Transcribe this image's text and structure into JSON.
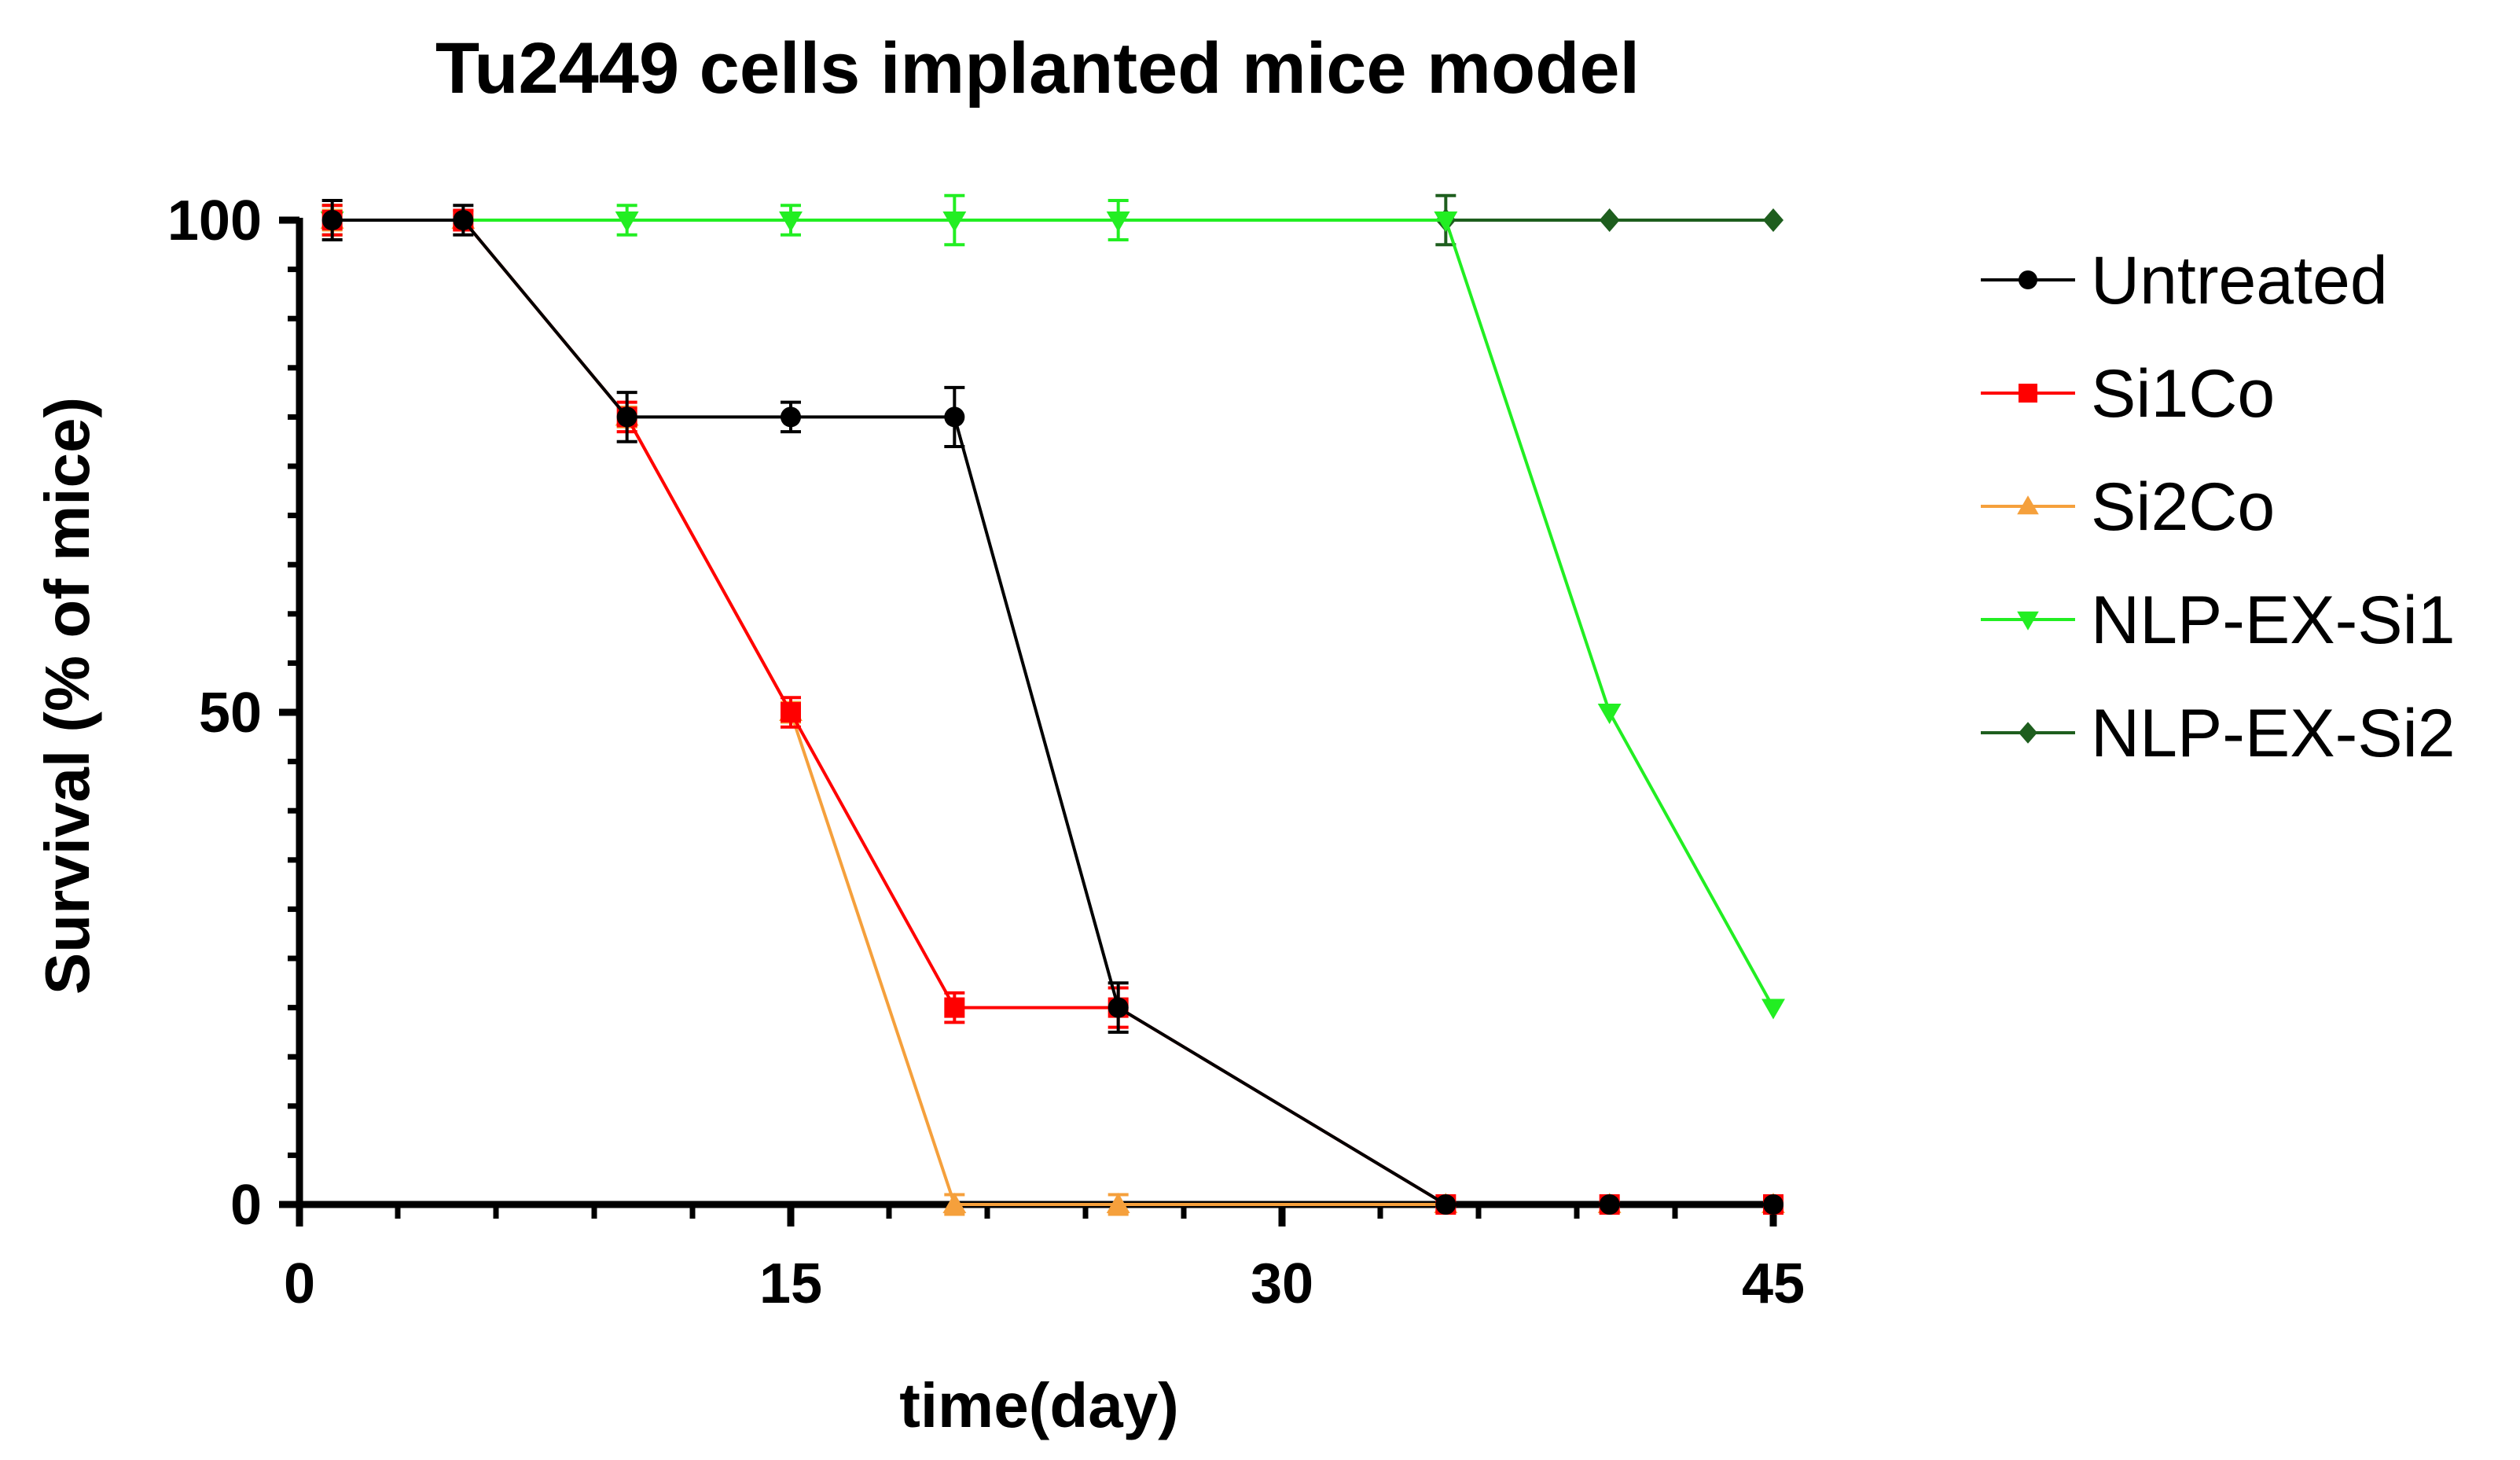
{
  "chart_data": {
    "type": "line",
    "title": "Tu2449 cells implanted mice model",
    "xlabel": "time(day)",
    "ylabel": "Survival (% of mice)",
    "xlim": [
      0,
      45
    ],
    "ylim": [
      0,
      100
    ],
    "x_ticks": [
      "0",
      "15",
      "30",
      "45"
    ],
    "y_ticks": [
      "0",
      "50",
      "100"
    ],
    "grid": false,
    "legend_position": "right",
    "series": [
      {
        "name": "Untreated",
        "color": "#000000",
        "marker": "circle",
        "points": [
          {
            "x": 1,
            "y": 100,
            "err": 2
          },
          {
            "x": 5,
            "y": 100,
            "err": 1.5
          },
          {
            "x": 10,
            "y": 80,
            "err": 2.5
          },
          {
            "x": 15,
            "y": 80,
            "err": 1.5
          },
          {
            "x": 20,
            "y": 80,
            "err": 3
          },
          {
            "x": 25,
            "y": 20,
            "err": 2.5
          },
          {
            "x": 35,
            "y": 0,
            "err": 0
          },
          {
            "x": 40,
            "y": 0,
            "err": 0
          },
          {
            "x": 45,
            "y": 0,
            "err": 0
          }
        ]
      },
      {
        "name": "Si1Co",
        "color": "#ff0000",
        "marker": "square",
        "points": [
          {
            "x": 1,
            "y": 100,
            "err": 1.5
          },
          {
            "x": 5,
            "y": 100,
            "err": 1
          },
          {
            "x": 10,
            "y": 80,
            "err": 1.5
          },
          {
            "x": 15,
            "y": 50,
            "err": 1.5
          },
          {
            "x": 20,
            "y": 20,
            "err": 1.5
          },
          {
            "x": 25,
            "y": 20,
            "err": 2
          },
          {
            "x": 35,
            "y": 0,
            "err": 0
          },
          {
            "x": 40,
            "y": 0,
            "err": 0
          },
          {
            "x": 45,
            "y": 0,
            "err": 0
          }
        ]
      },
      {
        "name": "Si2Co",
        "color": "#f5a03c",
        "marker": "triangle-up",
        "points": [
          {
            "x": 1,
            "y": 100,
            "err": 1
          },
          {
            "x": 5,
            "y": 100,
            "err": 1
          },
          {
            "x": 10,
            "y": 80,
            "err": 1
          },
          {
            "x": 15,
            "y": 50,
            "err": 1
          },
          {
            "x": 20,
            "y": 0,
            "err": 1
          },
          {
            "x": 25,
            "y": 0,
            "err": 1
          },
          {
            "x": 35,
            "y": 0,
            "err": 0
          },
          {
            "x": 40,
            "y": 0,
            "err": 0
          },
          {
            "x": 45,
            "y": 0,
            "err": 0
          }
        ]
      },
      {
        "name": "NLP-EX-Si1",
        "color": "#22ee22",
        "marker": "triangle-down",
        "points": [
          {
            "x": 1,
            "y": 100,
            "err": 1.5
          },
          {
            "x": 10,
            "y": 100,
            "err": 1.5
          },
          {
            "x": 15,
            "y": 100,
            "err": 1.5
          },
          {
            "x": 20,
            "y": 100,
            "err": 2.5
          },
          {
            "x": 25,
            "y": 100,
            "err": 2
          },
          {
            "x": 35,
            "y": 100,
            "err": 0
          },
          {
            "x": 40,
            "y": 50,
            "err": 0
          },
          {
            "x": 45,
            "y": 20,
            "err": 0
          }
        ]
      },
      {
        "name": "NLP-EX-Si2",
        "color": "#1e5e1e",
        "marker": "diamond",
        "points": [
          {
            "x": 1,
            "y": 100,
            "err": 0
          },
          {
            "x": 5,
            "y": 100,
            "err": 0
          },
          {
            "x": 35,
            "y": 100,
            "err": 2.5
          },
          {
            "x": 40,
            "y": 100,
            "err": 0
          },
          {
            "x": 45,
            "y": 100,
            "err": 0
          }
        ]
      }
    ]
  }
}
